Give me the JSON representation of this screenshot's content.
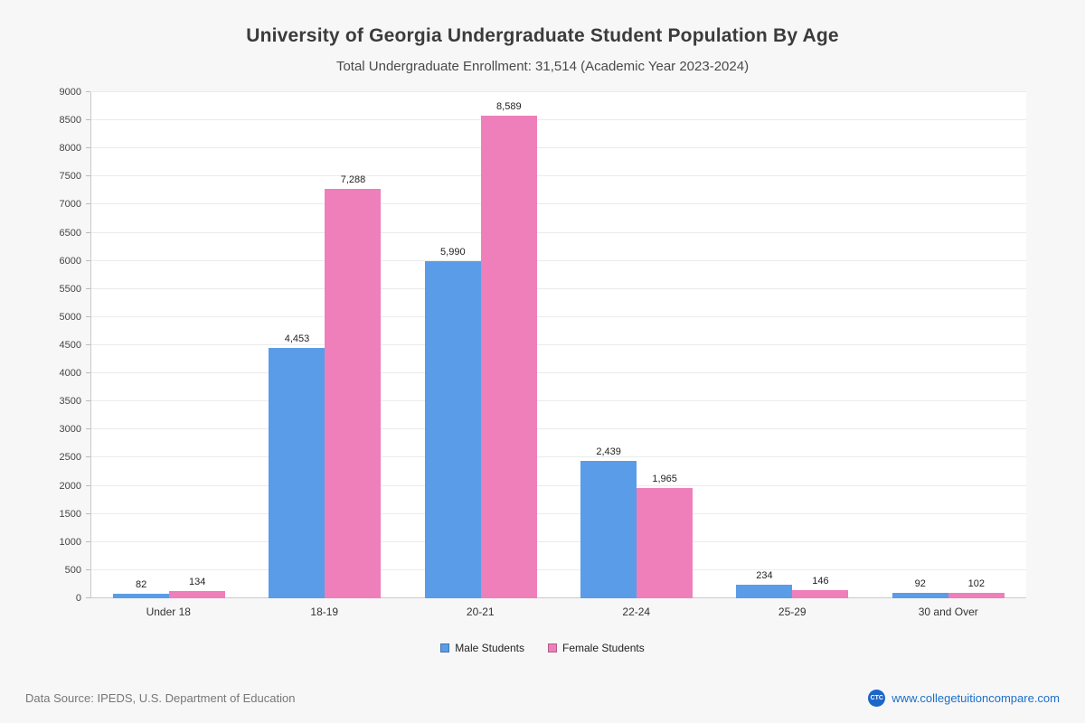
{
  "title": "University of Georgia Undergraduate Student Population By Age",
  "subtitle": "Total Undergraduate Enrollment: 31,514 (Academic Year 2023-2024)",
  "footer": {
    "source": "Data Source: IPEDS, U.S. Department of Education",
    "website": "www.collegetuitioncompare.com",
    "logo_text": "CTC"
  },
  "colors": {
    "male": "#5a9ce8",
    "female": "#ee7fba",
    "background": "#f7f7f7",
    "plot_background": "#ffffff",
    "grid": "#ebebeb",
    "link": "#1a6fc9"
  },
  "chart_data": {
    "type": "bar",
    "title": "University of Georgia Undergraduate Student Population By Age",
    "subtitle": "Total Undergraduate Enrollment: 31,514 (Academic Year 2023-2024)",
    "categories": [
      "Under 18",
      "18-19",
      "20-21",
      "22-24",
      "25-29",
      "30 and Over"
    ],
    "series": [
      {
        "name": "Male Students",
        "color_key": "male",
        "values": [
          82,
          4453,
          5990,
          2439,
          234,
          92
        ]
      },
      {
        "name": "Female Students",
        "color_key": "female",
        "values": [
          134,
          7288,
          8589,
          1965,
          146,
          102
        ]
      }
    ],
    "xlabel": "",
    "ylabel": "",
    "ylim": [
      0,
      9000
    ],
    "ytick_step": 500,
    "grid": true,
    "legend_position": "bottom"
  }
}
